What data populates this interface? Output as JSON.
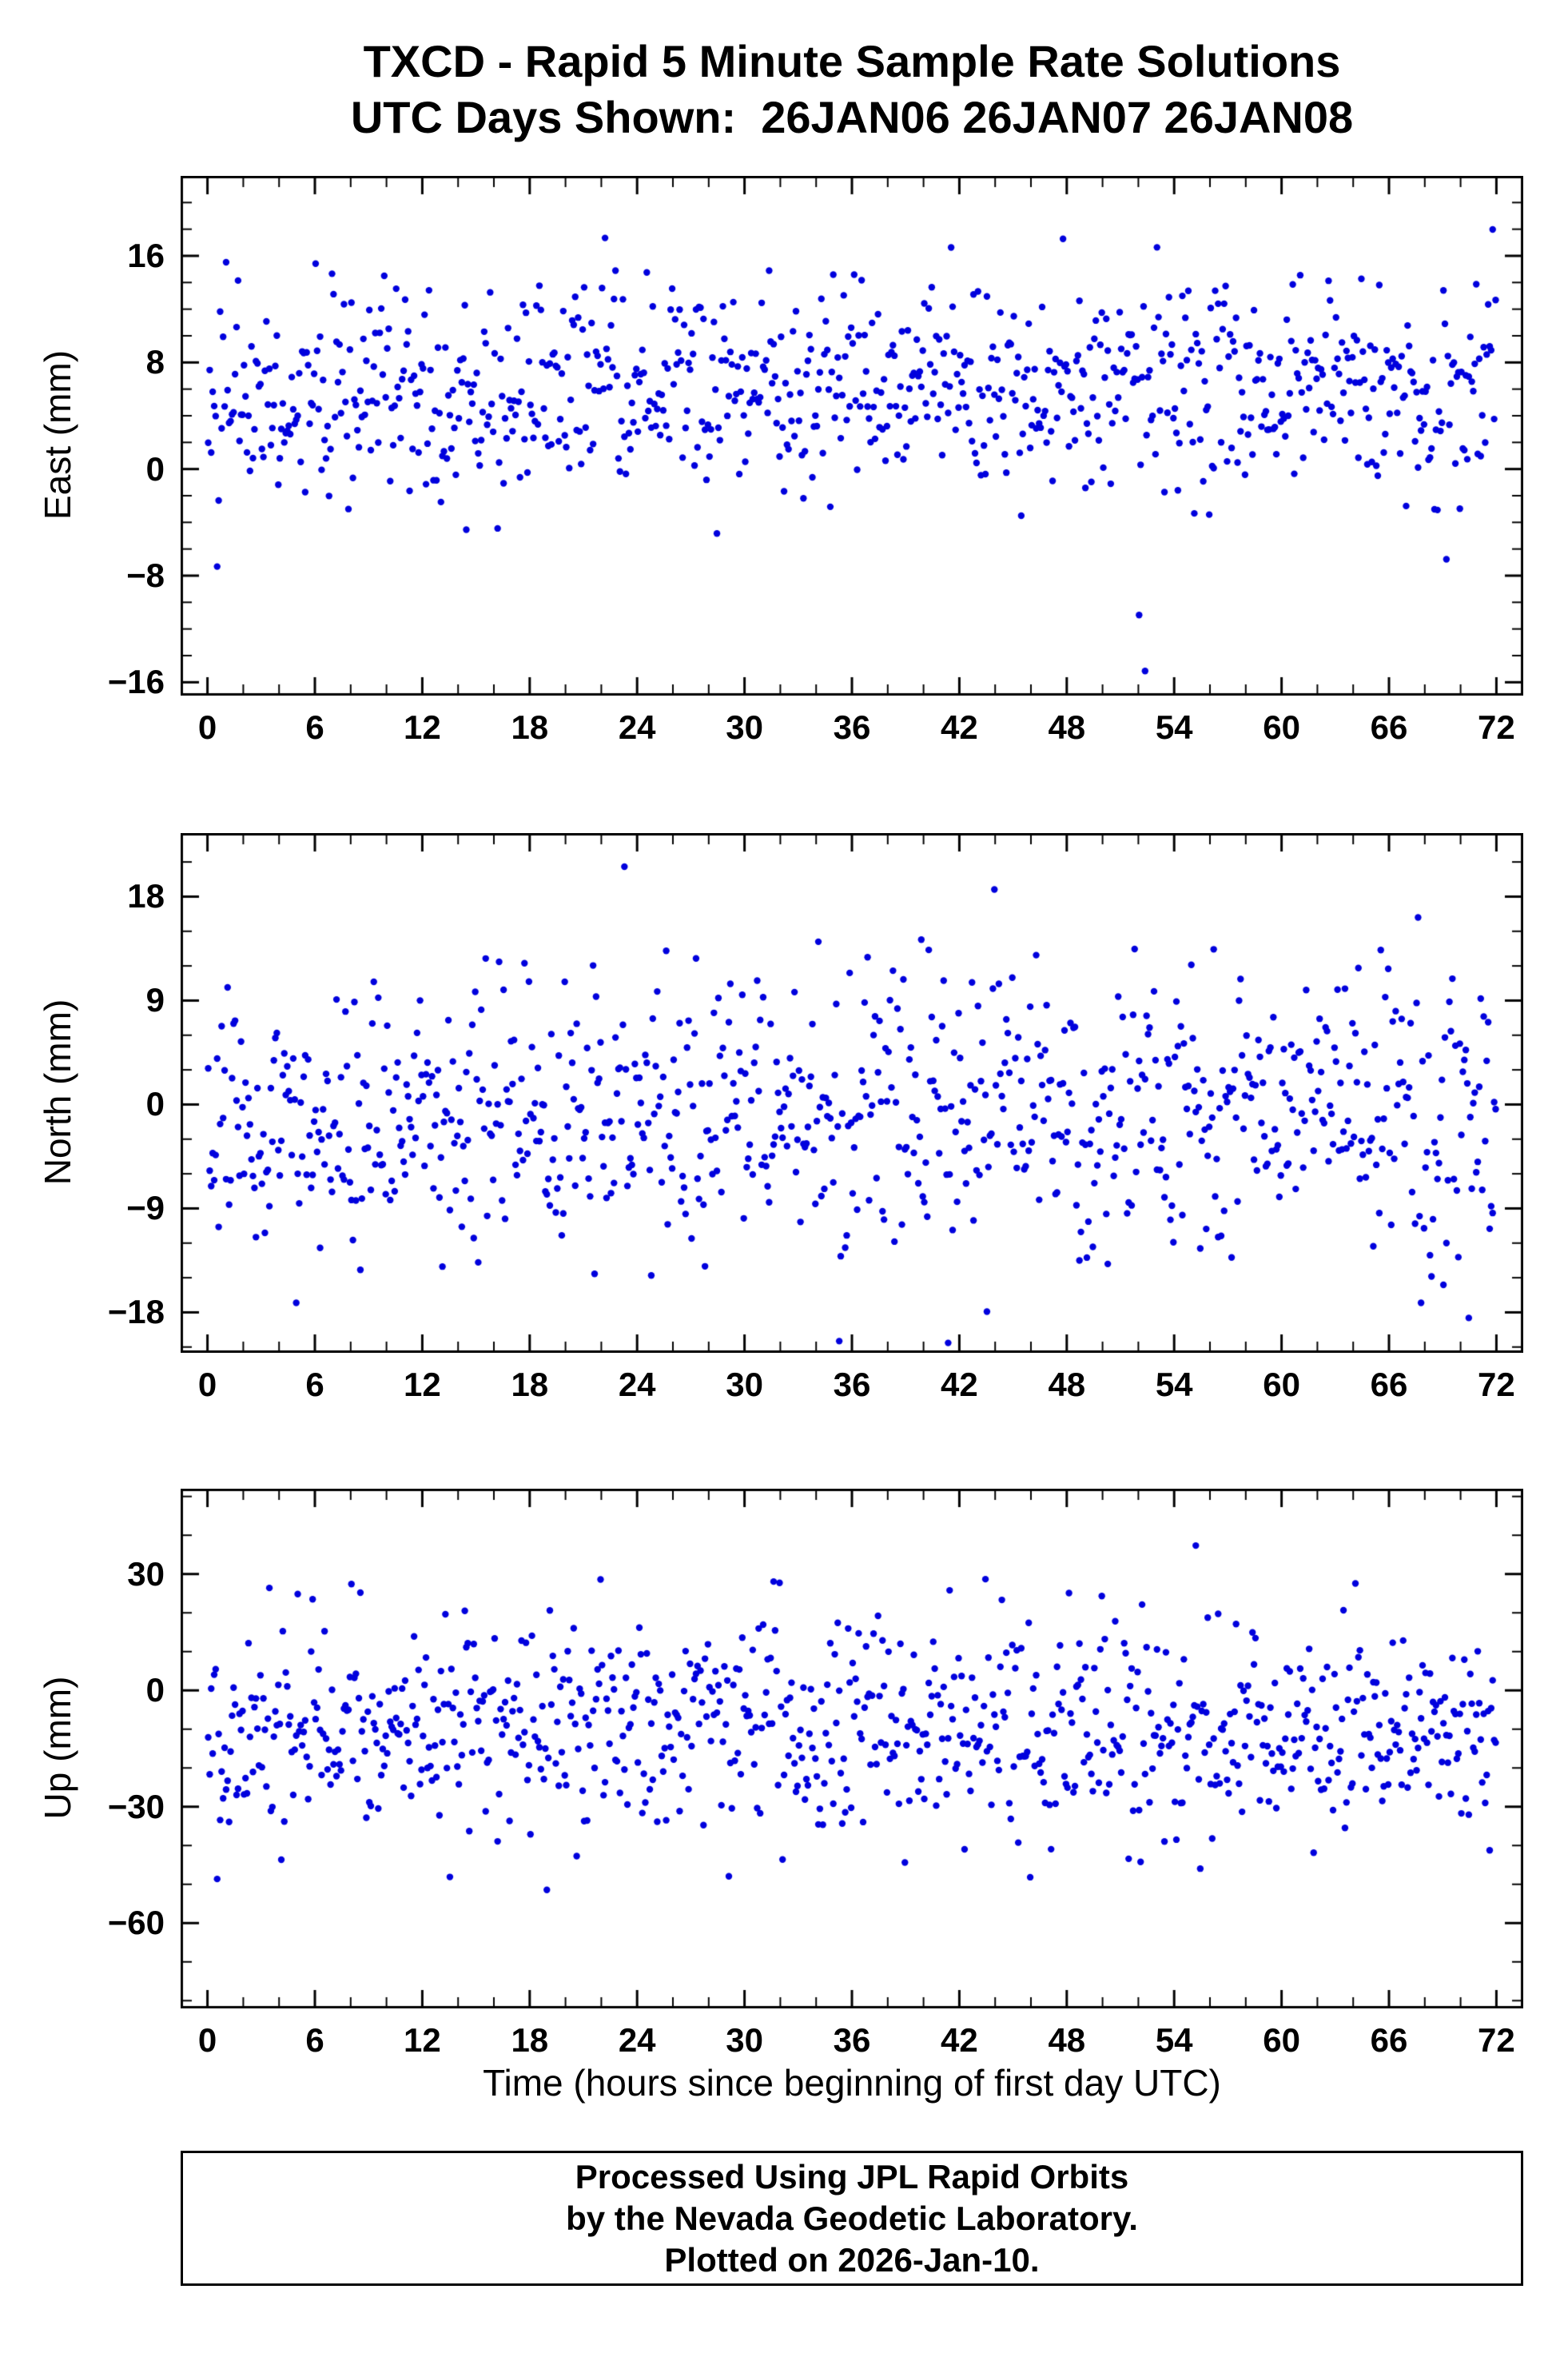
{
  "title": {
    "line1": "TXCD - Rapid 5 Minute Sample Rate Solutions",
    "line2": "UTC Days Shown:  26JAN06 26JAN07 26JAN08"
  },
  "xlabel": "Time (hours since beginning of first day UTC)",
  "footer": {
    "line1": "Processed Using JPL Rapid Orbits",
    "line2": "by the Nevada Geodetic Laboratory.",
    "line3": "Plotted on 2026-Jan-10."
  },
  "marker_color": "#0000DD",
  "chart_data": [
    {
      "type": "scatter",
      "name": "east",
      "ylabel": "East (mm)",
      "xlim": [
        -1.5,
        73.5
      ],
      "ylim": [
        -17,
        22
      ],
      "xticks": [
        0,
        6,
        12,
        18,
        24,
        30,
        36,
        42,
        48,
        54,
        60,
        66,
        72
      ],
      "xtick_minor": 2,
      "yticks": [
        -16,
        -8,
        0,
        8,
        16
      ],
      "ytick_minor": 2,
      "marker": {
        "color": "#0000DD",
        "radius": 4.2
      },
      "points": {
        "count": 864,
        "x_start": 0,
        "x_end": 72,
        "mean": 5.8,
        "std": 4.0,
        "outlier_prob": 0.015,
        "outlier_scale": 2.6,
        "seed": 42
      }
    },
    {
      "type": "scatter",
      "name": "north",
      "ylabel": "North (mm)",
      "xlim": [
        -1.5,
        73.5
      ],
      "ylim": [
        -21.5,
        23.5
      ],
      "xticks": [
        0,
        6,
        12,
        18,
        24,
        30,
        36,
        42,
        48,
        54,
        60,
        66,
        72
      ],
      "xtick_minor": 2,
      "yticks": [
        -18,
        -9,
        0,
        9,
        18
      ],
      "ytick_minor": 3,
      "marker": {
        "color": "#0000DD",
        "radius": 4.2
      },
      "points": {
        "count": 864,
        "x_start": 0,
        "x_end": 72,
        "mean": -0.8,
        "std": 5.8,
        "outlier_prob": 0.015,
        "outlier_scale": 2.3,
        "seed": 1337
      }
    },
    {
      "type": "scatter",
      "name": "up",
      "ylabel": "Up (mm)",
      "xlim": [
        -1.5,
        73.5
      ],
      "ylim": [
        -82,
        52
      ],
      "xticks": [
        0,
        6,
        12,
        18,
        24,
        30,
        36,
        42,
        48,
        54,
        60,
        66,
        72
      ],
      "xtick_minor": 2,
      "yticks": [
        -60,
        -30,
        0,
        30
      ],
      "ytick_minor": 10,
      "marker": {
        "color": "#0000DD",
        "radius": 4.2
      },
      "points": {
        "count": 864,
        "x_start": 0,
        "x_end": 72,
        "mean": -10,
        "std": 13.5,
        "outlier_prob": 0.012,
        "outlier_scale": 2.0,
        "seed": 2024
      }
    }
  ]
}
